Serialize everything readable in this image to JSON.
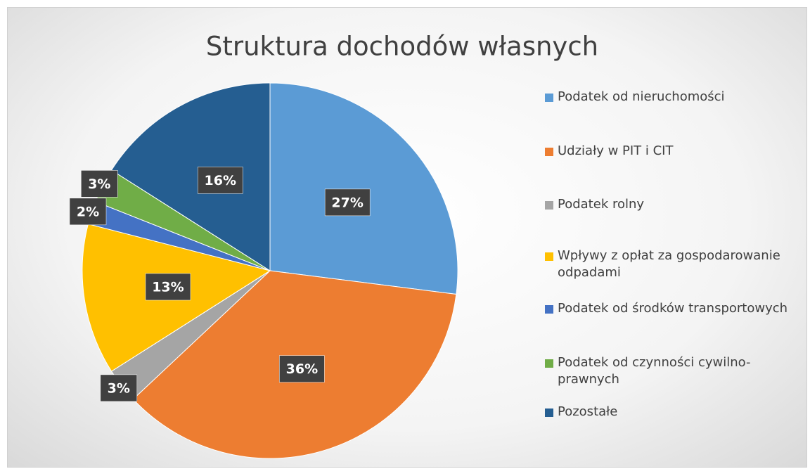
{
  "chart_data": {
    "type": "pie",
    "title": "Struktura dochodów własnych",
    "categories": [
      "Podatek od nieruchomości",
      "Udziały w PIT i CIT",
      "Podatek rolny",
      "Wpływy z opłat za gospodarowanie odpadami",
      "Podatek od środków transportowych",
      "Podatek od czynności cywilno-prawnych",
      "Pozostałe"
    ],
    "values": [
      27,
      36,
      3,
      13,
      2,
      3,
      16
    ],
    "value_labels": [
      "27%",
      "36%",
      "3%",
      "13%",
      "2%",
      "3%",
      "16%"
    ],
    "colors": [
      "#5b9bd5",
      "#ed7d31",
      "#a5a5a5",
      "#ffc000",
      "#4472c4",
      "#70ad47",
      "#255e91"
    ],
    "legend": "right"
  }
}
